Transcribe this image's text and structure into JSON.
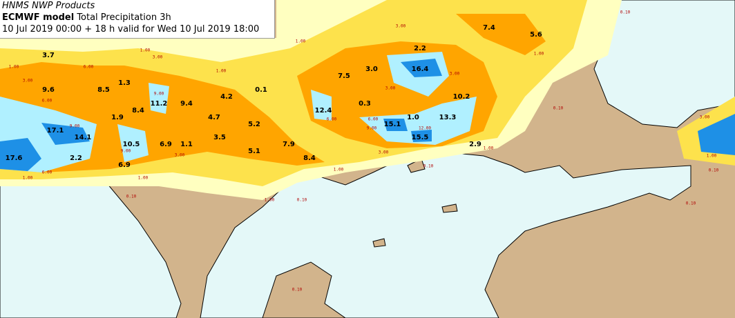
{
  "header": {
    "producer": "HNMS NWP Products",
    "model": "ECMWF model",
    "field": "Total Precipitation 3h",
    "validity": "10 Jul 2019 00:00 + 18 h valid for Wed 10 Jul 2019 18:00"
  },
  "maxima_labels": [
    "3.7",
    "9.6",
    "8.5",
    "1.3",
    "8.4",
    "11.2",
    "9.4",
    "4.2",
    "0.1",
    "1.9",
    "17.1",
    "14.1",
    "10.5",
    "6.9",
    "1.1",
    "4.7",
    "3.5",
    "5.2",
    "5.1",
    "7.9",
    "8.4",
    "17.6",
    "2.2",
    "6.9",
    "7.5",
    "3.0",
    "2.2",
    "16.4",
    "7.4",
    "5.6",
    "10.2",
    "12.4",
    "0.3",
    "15.1",
    "1.0",
    "13.3",
    "15.5",
    "2.9"
  ],
  "contour_labels": [
    "0.10",
    "0.10",
    "0.10",
    "0.10",
    "0.10",
    "0.10",
    "0.10",
    "0.10",
    "1.00",
    "1.00",
    "1.00",
    "1.00",
    "1.00",
    "1.00",
    "1.00",
    "1.00",
    "1.00",
    "1.00",
    "1.00",
    "3.00",
    "3.00",
    "3.00",
    "3.00",
    "3.00",
    "3.00",
    "3.00",
    "3.00",
    "6.00",
    "6.00",
    "6.00",
    "6.00",
    "6.00",
    "9.00",
    "9.00",
    "9.00",
    "9.00",
    "12.00"
  ]
}
